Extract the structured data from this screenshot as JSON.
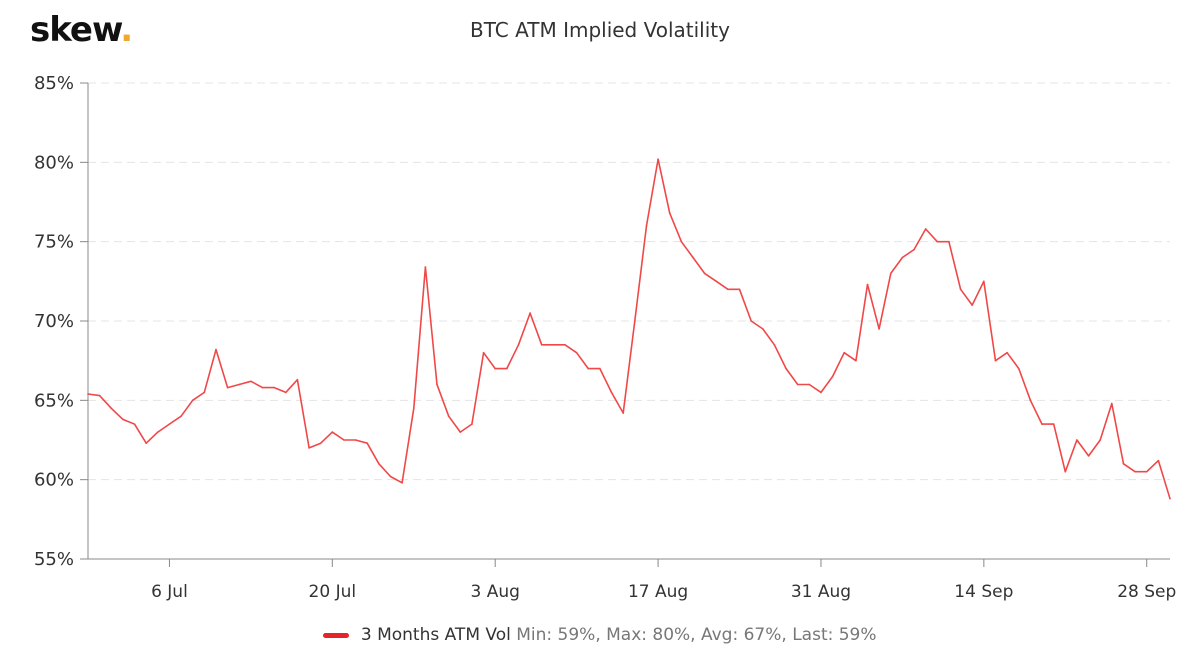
{
  "logo": {
    "text": "skew",
    "dot": "."
  },
  "chart_data": {
    "type": "line",
    "title": "BTC ATM Implied Volatility",
    "xlabel": "",
    "ylabel": "",
    "ylim": [
      55,
      85
    ],
    "yticks": [
      "55%",
      "60%",
      "65%",
      "70%",
      "75%",
      "80%",
      "85%"
    ],
    "ytick_values": [
      55,
      60,
      65,
      70,
      75,
      80,
      85
    ],
    "xlim": [
      "2020-06-29",
      "2020-09-30"
    ],
    "xticks": [
      "6 Jul",
      "20 Jul",
      "3 Aug",
      "17 Aug",
      "31 Aug",
      "14 Sep",
      "28 Sep"
    ],
    "xtick_dates": [
      "2020-07-06",
      "2020-07-20",
      "2020-08-03",
      "2020-08-17",
      "2020-08-31",
      "2020-09-14",
      "2020-09-28"
    ],
    "grid": "horizontal dashed",
    "legend_position": "bottom",
    "series": [
      {
        "name": "3 Months ATM Vol",
        "color": "#f04848",
        "stats": "Min: 59%, Max: 80%, Avg: 67%, Last: 59%",
        "points": [
          [
            "2020-06-29",
            65.4
          ],
          [
            "2020-06-30",
            65.3
          ],
          [
            "2020-07-01",
            64.5
          ],
          [
            "2020-07-02",
            63.8
          ],
          [
            "2020-07-03",
            63.5
          ],
          [
            "2020-07-04",
            62.3
          ],
          [
            "2020-07-05",
            63.0
          ],
          [
            "2020-07-06",
            63.5
          ],
          [
            "2020-07-07",
            64.0
          ],
          [
            "2020-07-08",
            65.0
          ],
          [
            "2020-07-09",
            65.5
          ],
          [
            "2020-07-10",
            68.2
          ],
          [
            "2020-07-11",
            65.8
          ],
          [
            "2020-07-12",
            66.0
          ],
          [
            "2020-07-13",
            66.2
          ],
          [
            "2020-07-14",
            65.8
          ],
          [
            "2020-07-15",
            65.8
          ],
          [
            "2020-07-16",
            65.5
          ],
          [
            "2020-07-17",
            66.3
          ],
          [
            "2020-07-18",
            62.0
          ],
          [
            "2020-07-19",
            62.3
          ],
          [
            "2020-07-20",
            63.0
          ],
          [
            "2020-07-21",
            62.5
          ],
          [
            "2020-07-22",
            62.5
          ],
          [
            "2020-07-23",
            62.3
          ],
          [
            "2020-07-24",
            61.0
          ],
          [
            "2020-07-25",
            60.2
          ],
          [
            "2020-07-26",
            59.8
          ],
          [
            "2020-07-27",
            64.5
          ],
          [
            "2020-07-28",
            73.4
          ],
          [
            "2020-07-29",
            66.0
          ],
          [
            "2020-07-30",
            64.0
          ],
          [
            "2020-07-31",
            63.0
          ],
          [
            "2020-08-01",
            63.5
          ],
          [
            "2020-08-02",
            68.0
          ],
          [
            "2020-08-03",
            67.0
          ],
          [
            "2020-08-04",
            67.0
          ],
          [
            "2020-08-05",
            68.5
          ],
          [
            "2020-08-06",
            70.5
          ],
          [
            "2020-08-07",
            68.5
          ],
          [
            "2020-08-08",
            68.5
          ],
          [
            "2020-08-09",
            68.5
          ],
          [
            "2020-08-10",
            68.0
          ],
          [
            "2020-08-11",
            67.0
          ],
          [
            "2020-08-12",
            67.0
          ],
          [
            "2020-08-13",
            65.5
          ],
          [
            "2020-08-14",
            64.2
          ],
          [
            "2020-08-15",
            70.0
          ],
          [
            "2020-08-16",
            76.0
          ],
          [
            "2020-08-17",
            80.2
          ],
          [
            "2020-08-18",
            76.8
          ],
          [
            "2020-08-19",
            75.0
          ],
          [
            "2020-08-20",
            74.0
          ],
          [
            "2020-08-21",
            73.0
          ],
          [
            "2020-08-22",
            72.5
          ],
          [
            "2020-08-23",
            72.0
          ],
          [
            "2020-08-24",
            72.0
          ],
          [
            "2020-08-25",
            70.0
          ],
          [
            "2020-08-26",
            69.5
          ],
          [
            "2020-08-27",
            68.5
          ],
          [
            "2020-08-28",
            67.0
          ],
          [
            "2020-08-29",
            66.0
          ],
          [
            "2020-08-30",
            66.0
          ],
          [
            "2020-08-31",
            65.5
          ],
          [
            "2020-09-01",
            66.5
          ],
          [
            "2020-09-02",
            68.0
          ],
          [
            "2020-09-03",
            67.5
          ],
          [
            "2020-09-04",
            72.3
          ],
          [
            "2020-09-05",
            69.5
          ],
          [
            "2020-09-06",
            73.0
          ],
          [
            "2020-09-07",
            74.0
          ],
          [
            "2020-09-08",
            74.5
          ],
          [
            "2020-09-09",
            75.8
          ],
          [
            "2020-09-10",
            75.0
          ],
          [
            "2020-09-11",
            75.0
          ],
          [
            "2020-09-12",
            72.0
          ],
          [
            "2020-09-13",
            71.0
          ],
          [
            "2020-09-14",
            72.5
          ],
          [
            "2020-09-15",
            67.5
          ],
          [
            "2020-09-16",
            68.0
          ],
          [
            "2020-09-17",
            67.0
          ],
          [
            "2020-09-18",
            65.0
          ],
          [
            "2020-09-19",
            63.5
          ],
          [
            "2020-09-20",
            63.5
          ],
          [
            "2020-09-21",
            60.5
          ],
          [
            "2020-09-22",
            62.5
          ],
          [
            "2020-09-23",
            61.5
          ],
          [
            "2020-09-24",
            62.5
          ],
          [
            "2020-09-25",
            64.8
          ],
          [
            "2020-09-26",
            61.0
          ],
          [
            "2020-09-27",
            60.5
          ],
          [
            "2020-09-28",
            60.5
          ],
          [
            "2020-09-29",
            61.2
          ],
          [
            "2020-09-30",
            58.8
          ]
        ]
      }
    ]
  }
}
